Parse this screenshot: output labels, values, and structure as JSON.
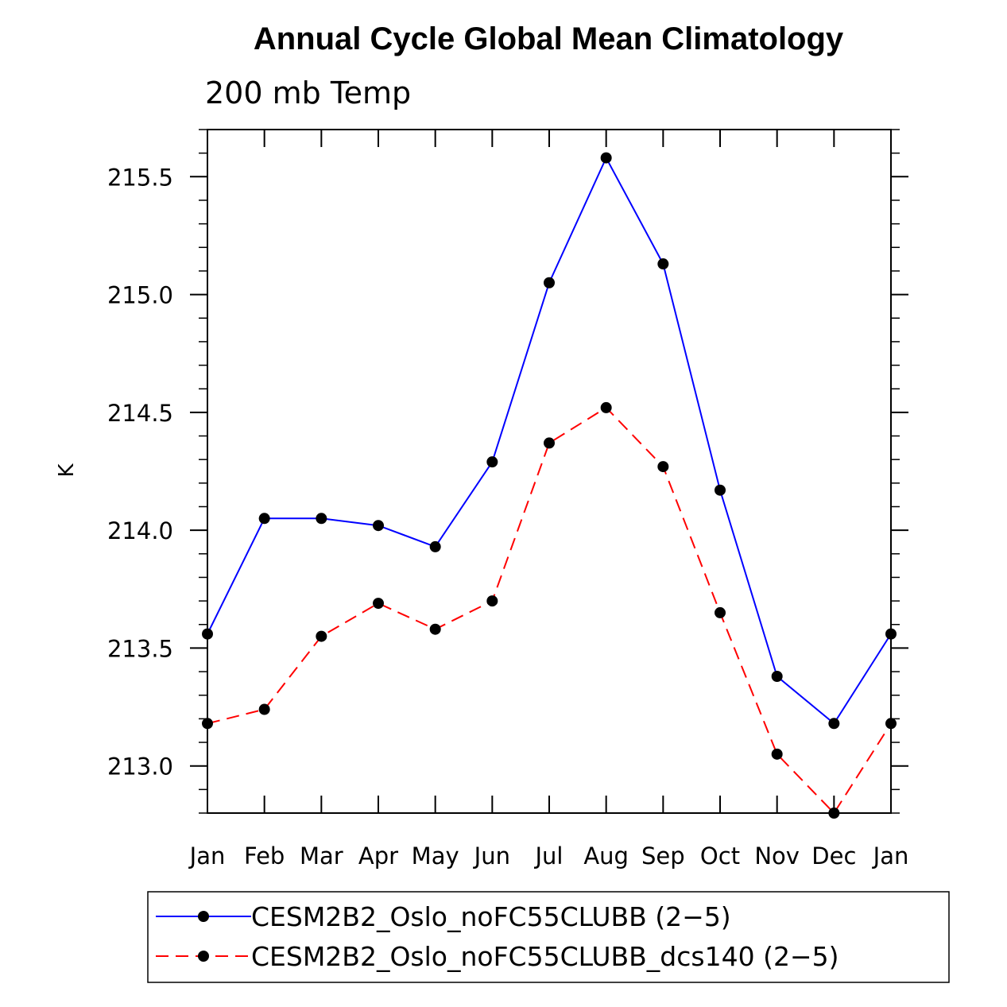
{
  "chart_data": {
    "type": "line",
    "title": "Annual Cycle Global Mean Climatology",
    "subtitle": "200 mb Temp",
    "xlabel": "",
    "ylabel": "K",
    "categories": [
      "Jan",
      "Feb",
      "Mar",
      "Apr",
      "May",
      "Jun",
      "Jul",
      "Aug",
      "Sep",
      "Oct",
      "Nov",
      "Dec",
      "Jan"
    ],
    "ylim": [
      212.8,
      215.7
    ],
    "yticks": [
      213.0,
      213.5,
      214.0,
      214.5,
      215.0,
      215.5
    ],
    "ytick_labels": [
      "213.0",
      "213.5",
      "214.0",
      "214.5",
      "215.0",
      "215.5"
    ],
    "series": [
      {
        "name": "CESM2B2_Oslo_noFC55CLUBB (2−5)",
        "color": "#0000ff",
        "dash": "solid",
        "values": [
          213.56,
          214.05,
          214.05,
          214.02,
          213.93,
          214.29,
          215.05,
          215.58,
          215.13,
          214.17,
          213.38,
          213.18,
          213.56
        ]
      },
      {
        "name": "CESM2B2_Oslo_noFC55CLUBB_dcs140 (2−5)",
        "color": "#ff0000",
        "dash": "dashed",
        "values": [
          213.18,
          213.24,
          213.55,
          213.69,
          213.58,
          213.7,
          214.37,
          214.52,
          214.27,
          213.65,
          213.05,
          212.8,
          213.18
        ]
      }
    ],
    "legend_position": "bottom"
  }
}
